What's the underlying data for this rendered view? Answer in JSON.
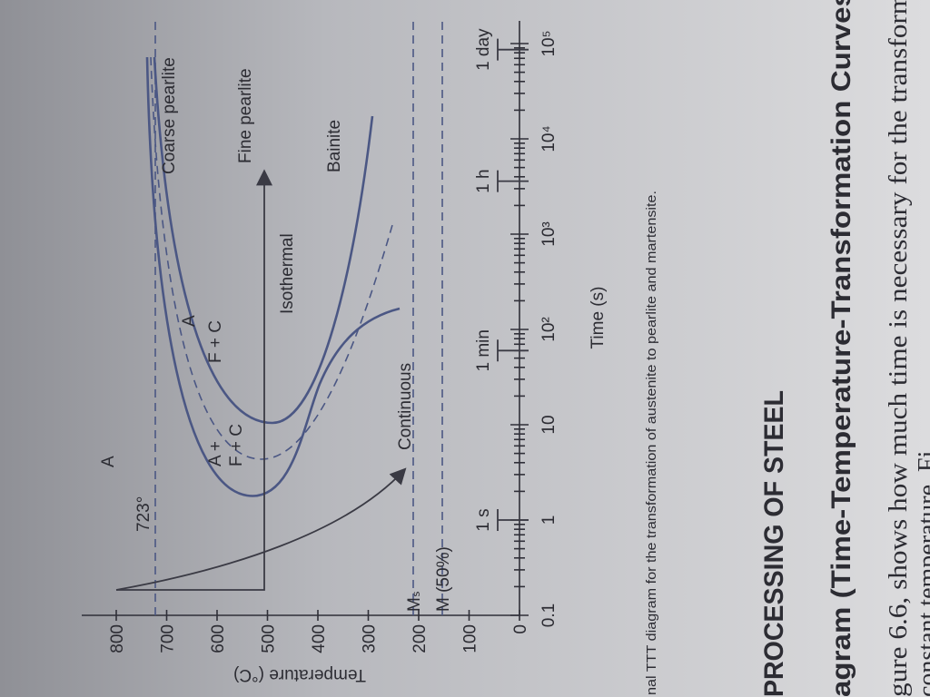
{
  "figure": {
    "y_axis_label": "Temperature (°C)",
    "y_ticks": [
      "800",
      "700",
      "600",
      "500",
      "400",
      "300",
      "200",
      "100",
      "0"
    ],
    "x_axis_label": "Time (s)",
    "x_ticks": [
      "0.1",
      "1",
      "10",
      "10²",
      "10³",
      "10⁴",
      "10⁵"
    ],
    "time_marks": [
      "1 s",
      "1 min",
      "1 h",
      "1 day"
    ],
    "labels": {
      "eutectoid": "723°",
      "austenite_top": "A",
      "austenite_left": "A",
      "a_plus": "A +",
      "f_c_inner": "F + C",
      "f_c": "F + C",
      "coarse": "Coarse pearlite",
      "fine": "Fine pearlite",
      "bainite": "Bainite",
      "isothermal": "Isothermal",
      "continuous": "Continuous",
      "ms": "Mₛ",
      "m50": "M (50%)"
    }
  },
  "caption": "nal TTT diagram for the transformation of austenite to pearlite and martensite.",
  "heading": "PROCESSING OF STEEL",
  "subheading": "agram (Time-Temperature-Transformation Curves)",
  "body": [
    "gure 6.6, shows how much time is necessary for the transforma",
    "constant temperature. Fi"
  ]
}
